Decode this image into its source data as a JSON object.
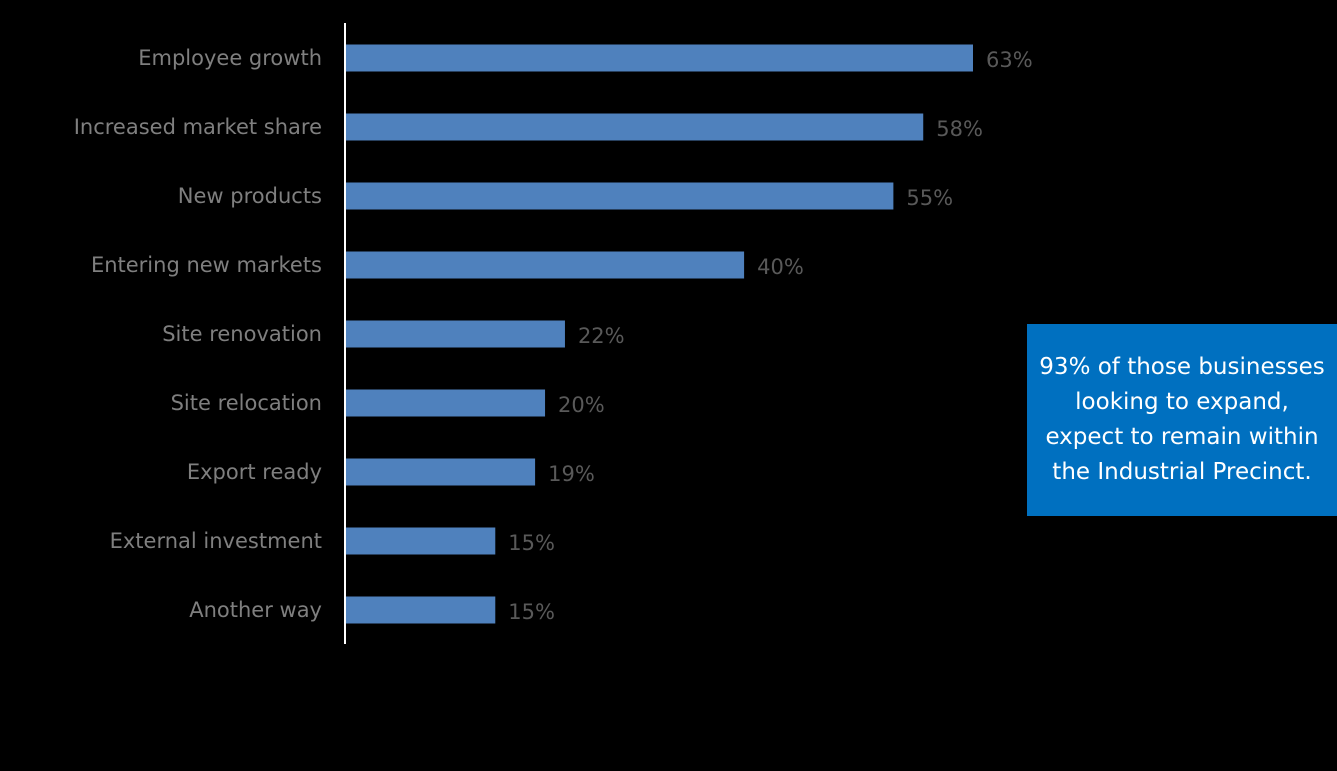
{
  "chart_data": {
    "type": "bar",
    "orientation": "horizontal",
    "categories": [
      "Employee growth",
      "Increased market share",
      "New products",
      "Entering new markets",
      "Site renovation",
      "Site relocation",
      "Export ready",
      "External investment",
      "Another way"
    ],
    "values": [
      63,
      58,
      55,
      40,
      22,
      20,
      19,
      15,
      15
    ],
    "value_labels": [
      "63%",
      "58%",
      "55%",
      "40%",
      "22%",
      "20%",
      "19%",
      "15%",
      "15%"
    ],
    "unit": "%",
    "xlim": [
      0,
      100
    ],
    "grid": false,
    "bar_color": "#4f81bd",
    "label_color": "#7f7f7f",
    "value_label_color": "#595959",
    "background": "#000000"
  },
  "callout": {
    "text": "93% of those businesses looking to expand, expect to remain within the Industrial Precinct.",
    "background": "#0070c0",
    "text_color": "#ffffff"
  }
}
